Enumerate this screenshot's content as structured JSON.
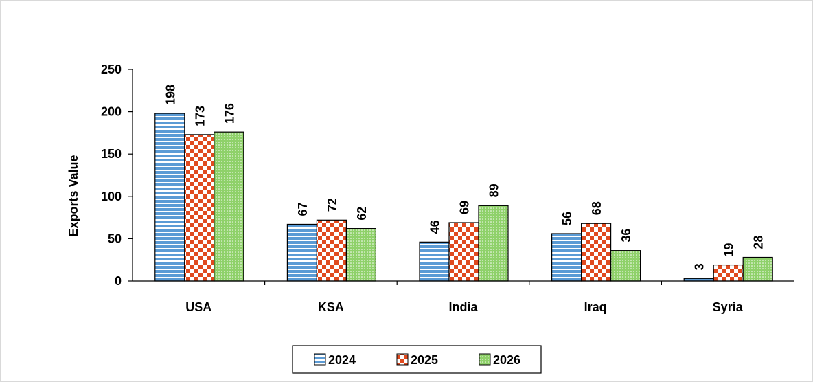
{
  "chart_data": {
    "type": "bar",
    "title": "",
    "xlabel": "",
    "ylabel": "Exports Value",
    "ylim": [
      0,
      250
    ],
    "yticks": [
      0,
      50,
      100,
      150,
      200,
      250
    ],
    "grid": false,
    "legend_position": "bottom",
    "categories": [
      "USA",
      "KSA",
      "India",
      "Iraq",
      "Syria"
    ],
    "series": [
      {
        "name": "2024",
        "values": [
          198,
          67,
          46,
          56,
          3
        ],
        "color": "#5b9bd5",
        "pattern": "horizontal-stripes"
      },
      {
        "name": "2025",
        "values": [
          173,
          72,
          69,
          68,
          19
        ],
        "color": "#e04a1f",
        "pattern": "checkerboard"
      },
      {
        "name": "2026",
        "values": [
          176,
          62,
          89,
          36,
          28
        ],
        "color": "#8fd16a",
        "pattern": "dots"
      }
    ]
  }
}
